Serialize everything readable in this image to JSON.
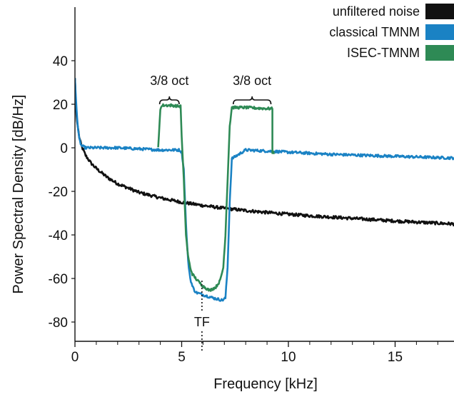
{
  "chart_data": {
    "type": "line",
    "title": "",
    "xlabel": "Frequency [kHz]",
    "ylabel": "Power Spectral Density [dB/Hz]",
    "xlim": [
      0,
      17.8
    ],
    "ylim": [
      -89,
      63
    ],
    "xticks": [
      0,
      5,
      10,
      15
    ],
    "yticks": [
      40,
      20,
      0,
      -20,
      -40,
      -60,
      -80
    ],
    "x_tick_labels": [
      "0",
      "5",
      "10",
      "15"
    ],
    "y_tick_labels": [
      "40",
      "20",
      "0",
      "-20",
      "-40",
      "-60",
      "-80"
    ],
    "grid": false,
    "legend_position": "top-right",
    "series": [
      {
        "name": "unfiltered  noise",
        "color": "#111111",
        "x": [
          0,
          0.05,
          0.1,
          0.2,
          0.3,
          0.5,
          0.75,
          1,
          1.5,
          2,
          2.5,
          3,
          4,
          5,
          6,
          7,
          8,
          9,
          10,
          11,
          12,
          13,
          14,
          15,
          16,
          17,
          17.8
        ],
        "y": [
          32,
          18,
          12,
          5,
          1,
          -3.5,
          -7,
          -9.5,
          -13.5,
          -16.5,
          -18.5,
          -20.5,
          -23,
          -25,
          -26.5,
          -27.8,
          -28.8,
          -29.7,
          -30.5,
          -31.2,
          -31.8,
          -32.4,
          -33,
          -33.6,
          -34.1,
          -34.6,
          -35
        ]
      },
      {
        "name": "classical  TMNM",
        "color": "#1a82c4",
        "x": [
          0,
          0.05,
          0.1,
          0.15,
          0.2,
          0.3,
          0.5,
          1,
          2,
          3,
          4,
          4.9,
          5,
          5.1,
          5.2,
          5.3,
          5.4,
          5.5,
          5.6,
          5.7,
          6,
          6.5,
          6.9,
          7.05,
          7.15,
          7.25,
          7.35,
          8,
          9,
          10,
          11,
          12,
          13,
          14,
          15,
          16,
          17,
          17.8
        ],
        "y": [
          32,
          22,
          14,
          8,
          4,
          1,
          0,
          0,
          0,
          -0.5,
          -1,
          -1,
          -2,
          -10,
          -35,
          -52,
          -60,
          -63.5,
          -65.5,
          -66.5,
          -67.5,
          -69,
          -70,
          -69,
          -55,
          -25,
          -5,
          -1,
          -1.5,
          -2,
          -2.5,
          -3,
          -3.3,
          -3.6,
          -3.9,
          -4.2,
          -4.5,
          -4.7
        ]
      },
      {
        "name": "ISEC-TMNM",
        "color": "#2e8a55",
        "x": [
          3.9,
          3.9,
          4.0,
          4.1,
          4.5,
          4.95,
          5.0,
          5.1,
          5.2,
          5.3,
          5.4,
          5.5,
          5.7,
          6,
          6.3,
          6.6,
          6.8,
          6.95,
          7.05,
          7.15,
          7.25,
          7.35,
          8,
          9,
          9.25,
          9.25,
          9.35
        ],
        "y": [
          0,
          0,
          18,
          19.5,
          19.5,
          19,
          5,
          -15,
          -40,
          -50,
          -55,
          -58,
          -60.5,
          -63.5,
          -65.5,
          -64,
          -61,
          -55,
          -40,
          -15,
          10,
          18.5,
          18.5,
          18,
          18,
          -2,
          -2
        ]
      }
    ],
    "annotations": [
      {
        "text": "3/8 oct",
        "type": "bracket",
        "x_start": 3.9,
        "x_end": 4.95,
        "y": 21.5
      },
      {
        "text": "3/8 oct",
        "type": "bracket",
        "x_start": 7.35,
        "x_end": 9.25,
        "y": 21.5
      },
      {
        "text": "TF",
        "type": "dotted-vline",
        "x": 5.95,
        "y_top": -61,
        "y_bottom": -95
      }
    ]
  }
}
